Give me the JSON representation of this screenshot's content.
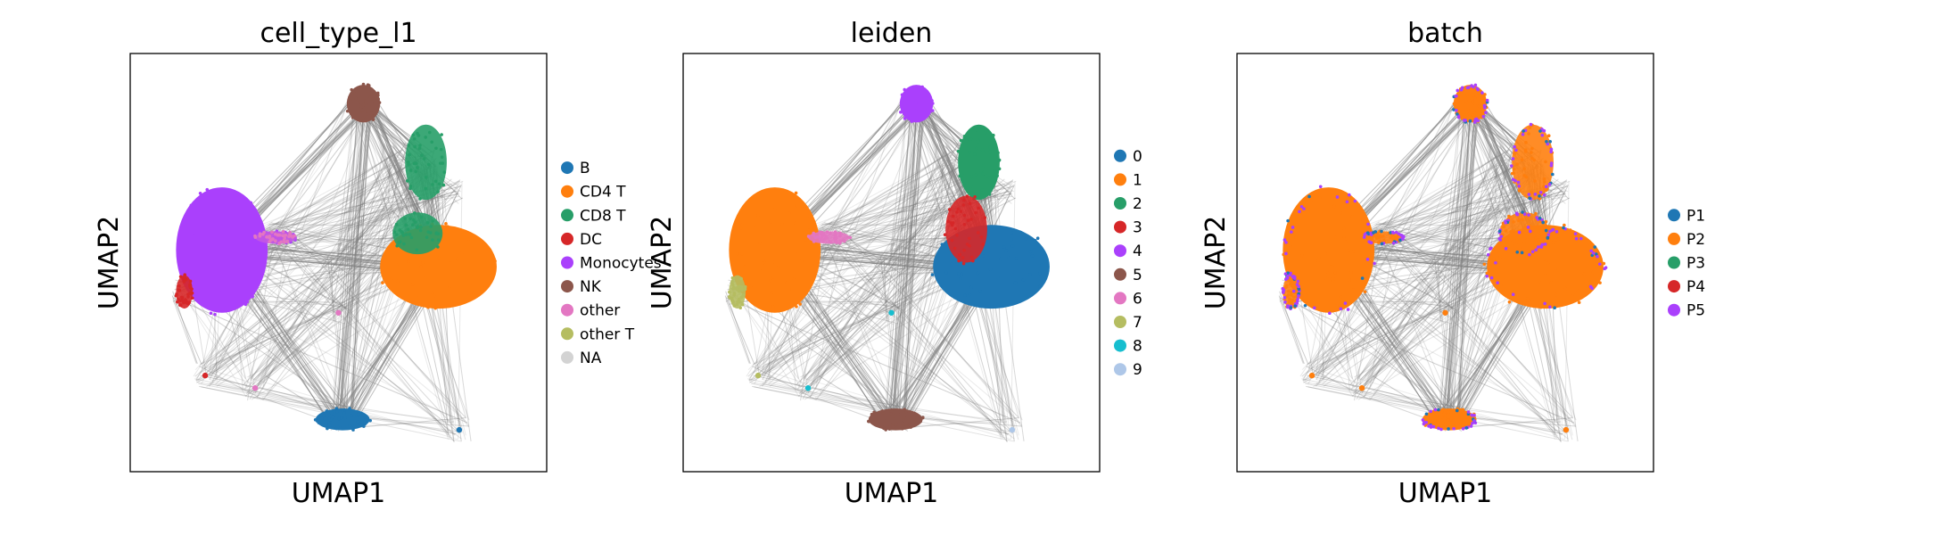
{
  "colors": {
    "edge": "#808080",
    "frame": "#000000"
  },
  "chart_data": [
    {
      "type": "scatter",
      "title": "cell_type_l1",
      "xlabel": "UMAP1",
      "ylabel": "UMAP2",
      "legend": "right",
      "categories": [
        "B",
        "CD4 T",
        "CD8 T",
        "DC",
        "Monocytes",
        "NK",
        "other",
        "other T",
        "NA"
      ],
      "colors": [
        "#1f77b4",
        "#ff7f0e",
        "#279e68",
        "#d62728",
        "#aa40fc",
        "#8c564b",
        "#e377c2",
        "#b5bd61",
        "#d3d3d3"
      ]
    },
    {
      "type": "scatter",
      "title": "leiden",
      "xlabel": "UMAP1",
      "ylabel": "UMAP2",
      "legend": "right",
      "categories": [
        "0",
        "1",
        "2",
        "3",
        "4",
        "5",
        "6",
        "7",
        "8",
        "9"
      ],
      "colors": [
        "#1f77b4",
        "#ff7f0e",
        "#279e68",
        "#d62728",
        "#aa40fc",
        "#8c564b",
        "#e377c2",
        "#b5bd61",
        "#17becf",
        "#aec7e8"
      ]
    },
    {
      "type": "scatter",
      "title": "batch",
      "xlabel": "UMAP1",
      "ylabel": "UMAP2",
      "legend": "right",
      "categories": [
        "P1",
        "P2",
        "P3",
        "P4",
        "P5"
      ],
      "colors": [
        "#1f77b4",
        "#ff7f0e",
        "#279e68",
        "#d62728",
        "#aa40fc"
      ]
    }
  ]
}
